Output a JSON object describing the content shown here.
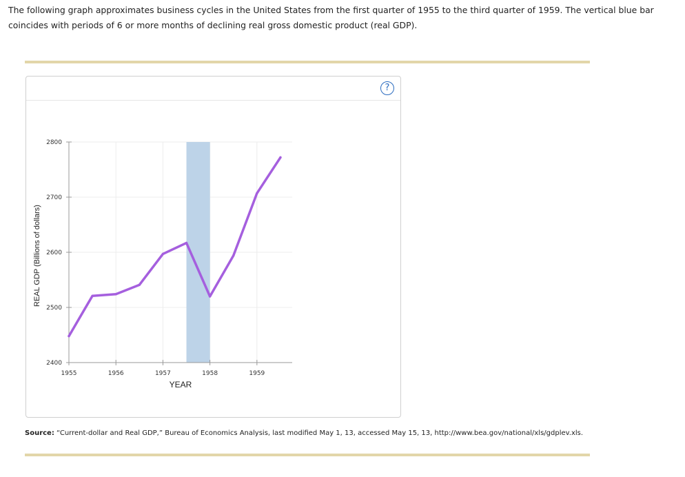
{
  "intro": {
    "line1": "The following graph approximates business cycles in the United States from the first quarter of 1955 to the third quarter of 1959. The vertical blue bar",
    "line2": "coincides with periods of 6 or more months of declining real gross domestic product (real GDP)."
  },
  "help_button": {
    "icon": "question-circle-icon",
    "label": "?"
  },
  "source": {
    "label": "Source:",
    "text": "“Current-dollar and Real GDP,” Bureau of Economics Analysis, last modified May 1, 13, accessed May 15, 13, http://www.bea.gov/national/xls/gdplev.xls."
  },
  "colors": {
    "line": "#a55fde",
    "recession_bar": "#bdd3e8",
    "rule": "#e2d6a9",
    "grid": "#ececec",
    "axis": "#999999"
  },
  "chart_data": {
    "type": "line",
    "xlabel": "YEAR",
    "ylabel": "REAL GDP (Billions of dollars)",
    "ylim": [
      2400,
      2800
    ],
    "xlim": [
      1955,
      1959.75
    ],
    "x_ticks": [
      1955,
      1956,
      1957,
      1958,
      1959
    ],
    "y_ticks": [
      2400,
      2500,
      2600,
      2700,
      2800
    ],
    "grid": true,
    "recession_band": {
      "x_start": 1957.5,
      "x_end": 1958.0
    },
    "x": [
      1955.0,
      1955.5,
      1956.0,
      1956.5,
      1957.0,
      1957.5,
      1958.0,
      1958.5,
      1959.0,
      1959.5
    ],
    "values": [
      2448,
      2521,
      2524,
      2541,
      2597,
      2617,
      2520,
      2594,
      2707,
      2772
    ]
  }
}
